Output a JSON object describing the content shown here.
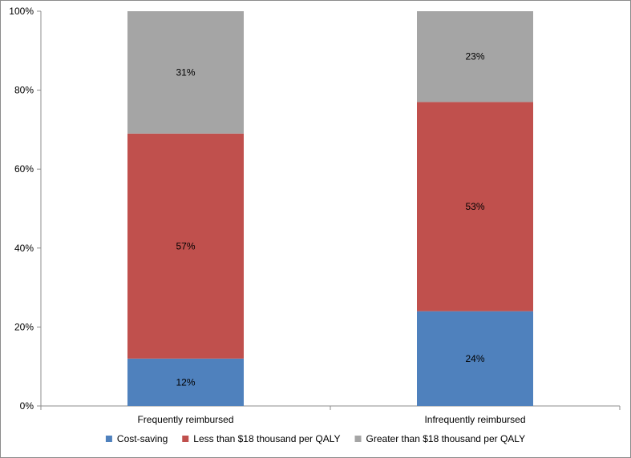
{
  "chart_data": {
    "type": "bar",
    "stacked": true,
    "percent_stacked": true,
    "categories": [
      "Frequently reimbursed",
      "Infrequently reimbursed"
    ],
    "series": [
      {
        "name": "Cost-saving",
        "values": [
          12,
          24
        ],
        "labels": [
          "12%",
          "24%"
        ],
        "color": "#4f81bd"
      },
      {
        "name": "Less than  $18 thousand per QALY",
        "values": [
          57,
          53
        ],
        "labels": [
          "57%",
          "53%"
        ],
        "color": "#c0504d"
      },
      {
        "name": "Greater than $18 thousand per QALY",
        "values": [
          31,
          23
        ],
        "labels": [
          "31%",
          "23%"
        ],
        "color": "#a5a5a5"
      }
    ],
    "ylim": [
      0,
      100
    ],
    "yticks": [
      "0%",
      "20%",
      "40%",
      "60%",
      "80%",
      "100%"
    ],
    "grid": false,
    "legend_position": "bottom"
  }
}
